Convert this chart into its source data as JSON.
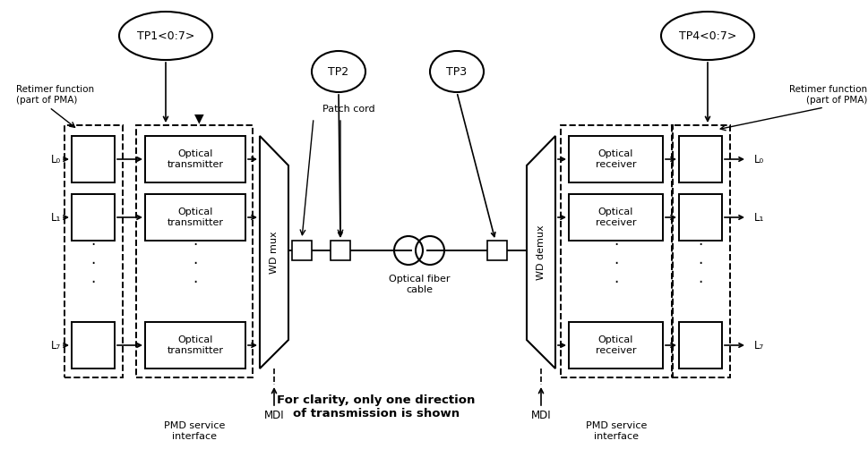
{
  "bg_color": "#ffffff",
  "fig_width": 9.7,
  "fig_height": 5.21,
  "tp1_label": "TP1<0:7>",
  "tp2_label": "TP2",
  "tp3_label": "TP3",
  "tp4_label": "TP4<0:7>",
  "retimer_left": "Retimer function\n(part of PMA)",
  "retimer_right": "Retimer function\n(part of PMA)",
  "pmd_left": "PMD service\ninterface",
  "pmd_right": "PMD service\ninterface",
  "mdi_left": "MDI",
  "mdi_right": "MDI",
  "patch_cord": "Patch cord",
  "optical_fiber": "Optical fiber\ncable",
  "clarity_text": "For clarity, only one direction\nof transmission is shown",
  "wd_mux": "WD mux",
  "wd_demux": "WD demux",
  "opt_tx_label": "Optical\ntransmitter",
  "opt_rx_label": "Optical\nreceiver"
}
